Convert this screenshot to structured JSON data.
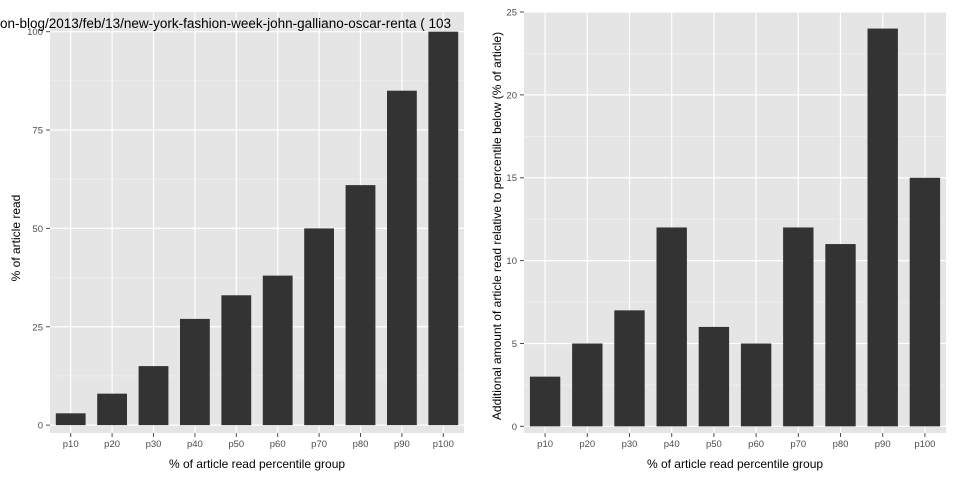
{
  "colors": {
    "panel": "#e5e5e5",
    "grid_major": "#ffffff",
    "grid_minor": "#f2f2f2",
    "bar": "#333333",
    "tick": "#4d4d4d"
  },
  "chart_data": [
    {
      "type": "bar",
      "title": "on-blog/2013/feb/13/new-york-fashion-week-john-galliano-oscar-renta ( 103",
      "xlabel": "% of article read percentile group",
      "ylabel": "% of article read",
      "categories": [
        "p10",
        "p20",
        "p30",
        "p40",
        "p50",
        "p60",
        "p70",
        "p80",
        "p90",
        "p100"
      ],
      "values": [
        3,
        8,
        15,
        27,
        33,
        38,
        50,
        61,
        85,
        100
      ],
      "ylim": [
        -2,
        105
      ],
      "yticks": [
        0,
        25,
        50,
        75,
        100
      ],
      "grid": true,
      "legend": "none"
    },
    {
      "type": "bar",
      "title": "",
      "xlabel": "% of article read percentile group",
      "ylabel": "Additional amount of article read relative to percentile below (% of article)",
      "categories": [
        "p10",
        "p20",
        "p30",
        "p40",
        "p50",
        "p60",
        "p70",
        "p80",
        "p90",
        "p100"
      ],
      "values": [
        3,
        5,
        7,
        12,
        6,
        5,
        12,
        11,
        24,
        15
      ],
      "ylim": [
        -0.4,
        25
      ],
      "yticks": [
        0,
        5,
        10,
        15,
        20,
        25
      ],
      "grid": true,
      "legend": "none"
    }
  ]
}
